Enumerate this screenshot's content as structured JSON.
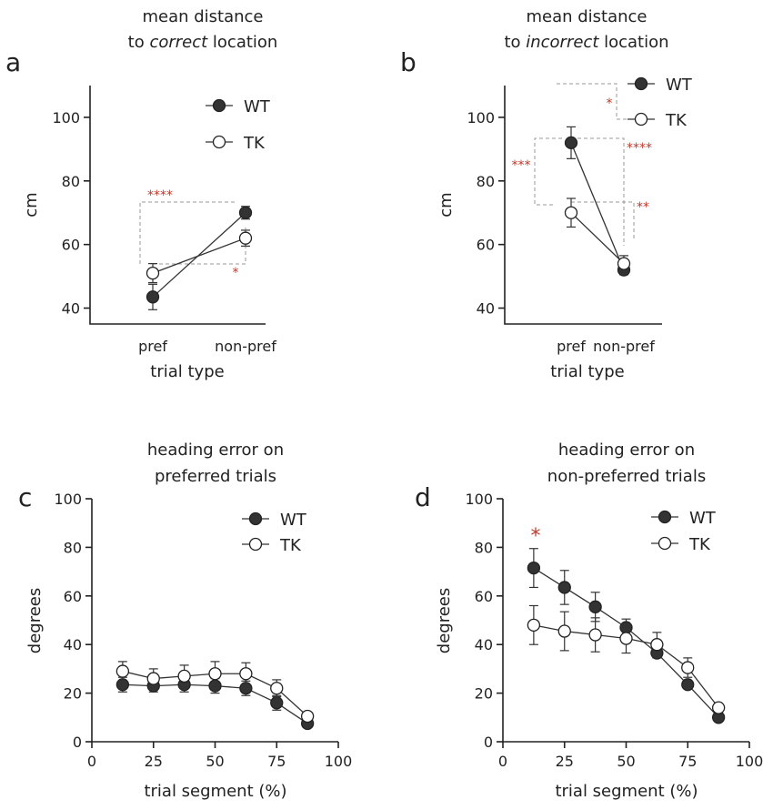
{
  "chart_data": [
    {
      "panel": "a",
      "type": "line",
      "title_lines": [
        "mean distance",
        "to ",
        "correct",
        " location"
      ],
      "xlabel": "trial type",
      "ylabel": "cm",
      "categories": [
        "pref",
        "non-pref"
      ],
      "yticks": [
        40,
        60,
        80,
        100
      ],
      "ylim": [
        35,
        110
      ],
      "series": [
        {
          "name": "WT",
          "values": [
            43.5,
            70
          ],
          "errors": [
            4,
            2
          ],
          "fill": "#333333"
        },
        {
          "name": "TK",
          "values": [
            51,
            62
          ],
          "errors": [
            3,
            2.5
          ],
          "fill": "#ffffff"
        }
      ],
      "significance": [
        {
          "label": "****",
          "between": "pref vs non-pref (WT)"
        },
        {
          "label": "*",
          "between": "pref vs non-pref (TK)"
        }
      ],
      "legend": "top-right"
    },
    {
      "panel": "b",
      "type": "line",
      "title_lines": [
        "mean distance",
        "to ",
        "incorrect",
        " location"
      ],
      "xlabel": "trial type",
      "ylabel": "cm",
      "categories": [
        "pref",
        "non-pref"
      ],
      "yticks": [
        40,
        60,
        80,
        100
      ],
      "ylim": [
        35,
        110
      ],
      "series": [
        {
          "name": "WT",
          "values": [
            92,
            52
          ],
          "errors": [
            5,
            1.5
          ],
          "fill": "#333333"
        },
        {
          "name": "TK",
          "values": [
            70,
            54
          ],
          "errors": [
            4.5,
            2.5
          ],
          "fill": "#ffffff"
        }
      ],
      "significance": [
        {
          "label": "*",
          "between": "WT vs TK (legend)"
        },
        {
          "label": "***",
          "between": "WT vs TK (pref)"
        },
        {
          "label": "****",
          "between": "pref vs non-pref (WT)"
        },
        {
          "label": "**",
          "between": "pref vs non-pref (TK)"
        }
      ],
      "legend": "top-right"
    },
    {
      "panel": "c",
      "type": "line",
      "title_lines": [
        "heading error on",
        "preferred trials"
      ],
      "xlabel": "trial segment (%)",
      "ylabel": "degrees",
      "x": [
        12.5,
        25,
        37.5,
        50,
        62.5,
        75,
        87.5
      ],
      "xticks": [
        0,
        25,
        50,
        75,
        100
      ],
      "yticks": [
        0,
        20,
        40,
        60,
        80,
        100
      ],
      "xlim": [
        0,
        100
      ],
      "ylim": [
        0,
        100
      ],
      "series": [
        {
          "name": "WT",
          "values": [
            23.5,
            23,
            23.5,
            23,
            22,
            16,
            7.5
          ],
          "errors": [
            3,
            2.5,
            3,
            3,
            3,
            3,
            1
          ],
          "fill": "#333333"
        },
        {
          "name": "TK",
          "values": [
            29,
            26,
            27,
            28,
            28,
            22,
            10.5
          ],
          "errors": [
            4,
            4,
            4.5,
            5,
            4.5,
            3.5,
            1
          ],
          "fill": "#ffffff"
        }
      ],
      "significance": [],
      "legend": "top-right"
    },
    {
      "panel": "d",
      "type": "line",
      "title_lines": [
        "heading error on",
        "non-preferred trials"
      ],
      "xlabel": "trial segment (%)",
      "ylabel": "degrees",
      "x": [
        12.5,
        25,
        37.5,
        50,
        62.5,
        75,
        87.5
      ],
      "xticks": [
        0,
        25,
        50,
        75,
        100
      ],
      "yticks": [
        0,
        20,
        40,
        60,
        80,
        100
      ],
      "xlim": [
        0,
        100
      ],
      "ylim": [
        0,
        100
      ],
      "series": [
        {
          "name": "WT",
          "values": [
            71.5,
            63.5,
            55.5,
            47,
            36.5,
            23.5,
            10
          ],
          "errors": [
            8,
            7,
            6,
            3.5,
            2,
            1.5,
            1
          ],
          "fill": "#333333"
        },
        {
          "name": "TK",
          "values": [
            48,
            45.5,
            44,
            42.5,
            40,
            30.5,
            14
          ],
          "errors": [
            8,
            8,
            7,
            6,
            5,
            4,
            1.5
          ],
          "fill": "#ffffff"
        }
      ],
      "significance": [
        {
          "label": "*",
          "between": "WT vs TK at 12.5%"
        }
      ],
      "legend": "top-right"
    }
  ]
}
